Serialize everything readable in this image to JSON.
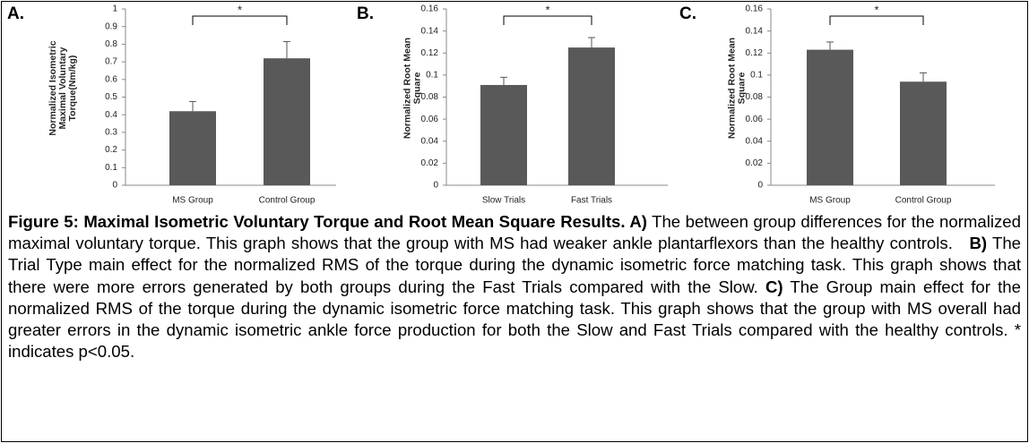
{
  "chart_data": [
    {
      "type": "bar",
      "panel_label": "A.",
      "ylabel": [
        "Normalized Isometric",
        "Maximal Voluntary",
        "Torque(Nm/kg)"
      ],
      "categories": [
        "MS Group",
        "Control Group"
      ],
      "values": [
        0.42,
        0.72
      ],
      "errors": [
        0.055,
        0.095
      ],
      "color": "#595959",
      "ylim": [
        0,
        1
      ],
      "yticks": [
        0,
        0.1,
        0.2,
        0.3,
        0.4,
        0.5,
        0.6,
        0.7,
        0.8,
        0.9,
        1
      ],
      "annotation": "*"
    },
    {
      "type": "bar",
      "panel_label": "B.",
      "ylabel": [
        "Normalized Root Mean",
        "Square"
      ],
      "categories": [
        "Slow Trials",
        "Fast Trials"
      ],
      "values": [
        0.091,
        0.125
      ],
      "errors": [
        0.007,
        0.009
      ],
      "color": "#595959",
      "ylim": [
        0,
        0.16
      ],
      "yticks": [
        0,
        0.02,
        0.04,
        0.06,
        0.08,
        0.1,
        0.12,
        0.14,
        0.16
      ],
      "annotation": "*"
    },
    {
      "type": "bar",
      "panel_label": "C.",
      "ylabel": [
        "Normalized Root Mean",
        "Square"
      ],
      "categories": [
        "MS Group",
        "Control Group"
      ],
      "values": [
        0.123,
        0.094
      ],
      "errors": [
        0.007,
        0.008
      ],
      "color": "#595959",
      "ylim": [
        0,
        0.16
      ],
      "yticks": [
        0,
        0.02,
        0.04,
        0.06,
        0.08,
        0.1,
        0.12,
        0.14,
        0.16
      ],
      "annotation": "*"
    }
  ],
  "caption": [
    {
      "text": "Figure 5: Maximal Isometric Voluntary Torque and Root Mean Square Results. A)",
      "bold": true
    },
    {
      "text": " The between group differences for the normalized maximal voluntary torque. This graph shows that the group with MS had weaker ankle plantarflexors than the healthy controls.   ",
      "bold": false
    },
    {
      "text": "B)",
      "bold": true
    },
    {
      "text": " The Trial Type main effect for the normalized RMS of the torque during the dynamic isometric force matching task. This graph shows that there were more errors generated by both groups during the Fast Trials compared with the Slow. ",
      "bold": false
    },
    {
      "text": "C)",
      "bold": true
    },
    {
      "text": " The Group main effect for the normalized RMS of the torque during the dynamic isometric force matching task. This graph shows that the group with MS overall had greater errors in the dynamic isometric ankle force production for both the Slow and Fast Trials compared with the healthy controls. * indicates p<0.05.",
      "bold": false
    }
  ]
}
